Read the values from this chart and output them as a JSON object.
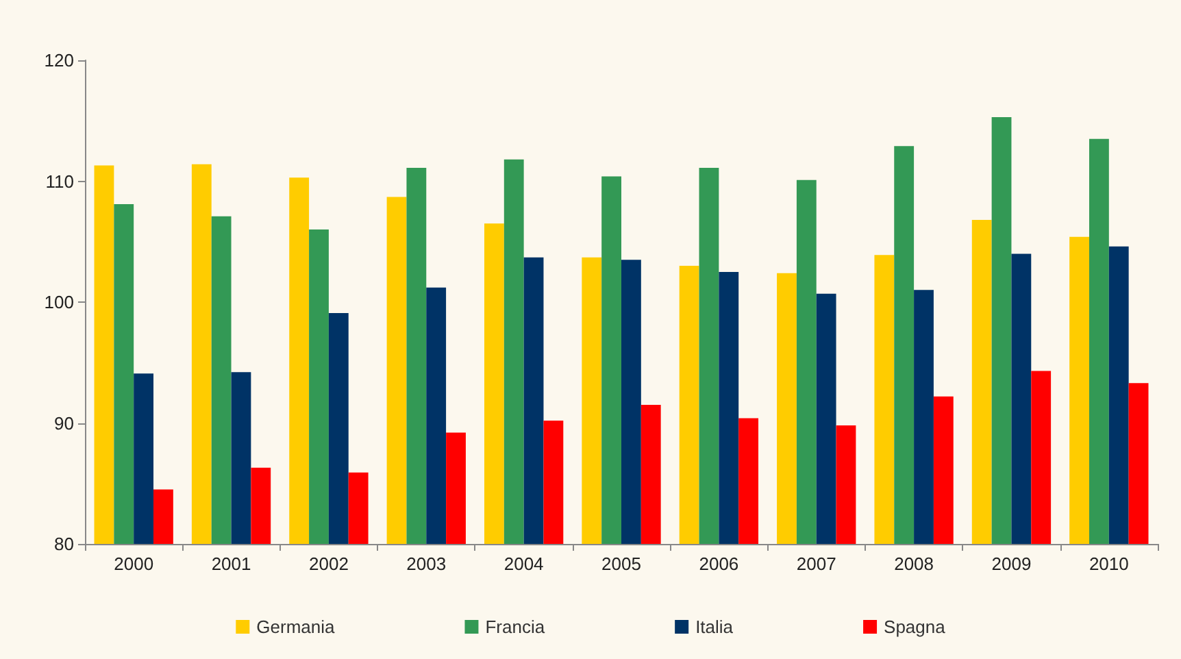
{
  "chart_data": {
    "type": "bar",
    "categories": [
      "2000",
      "2001",
      "2002",
      "2003",
      "2004",
      "2005",
      "2006",
      "2007",
      "2008",
      "2009",
      "2010"
    ],
    "series": [
      {
        "name": "Germania",
        "color": "#ffcc00",
        "values": [
          111.3,
          111.4,
          110.3,
          108.7,
          106.5,
          103.7,
          103.0,
          102.4,
          103.9,
          106.8,
          105.4
        ]
      },
      {
        "name": "Francia",
        "color": "#339955",
        "values": [
          108.1,
          107.1,
          106.0,
          111.1,
          111.8,
          110.4,
          111.1,
          110.1,
          112.9,
          115.3,
          113.5
        ]
      },
      {
        "name": "Italia",
        "color": "#003366",
        "values": [
          94.1,
          94.2,
          99.1,
          101.2,
          103.7,
          103.5,
          102.5,
          100.7,
          101.0,
          104.0,
          104.6
        ]
      },
      {
        "name": "Spagna",
        "color": "#ff0000",
        "values": [
          84.5,
          86.3,
          85.9,
          89.2,
          90.2,
          91.5,
          90.4,
          89.8,
          92.2,
          94.3,
          93.3
        ]
      }
    ],
    "ylim": [
      80,
      120
    ],
    "yticks": [
      80,
      90,
      100,
      110,
      120
    ],
    "grid": false,
    "legend": "bottom"
  }
}
